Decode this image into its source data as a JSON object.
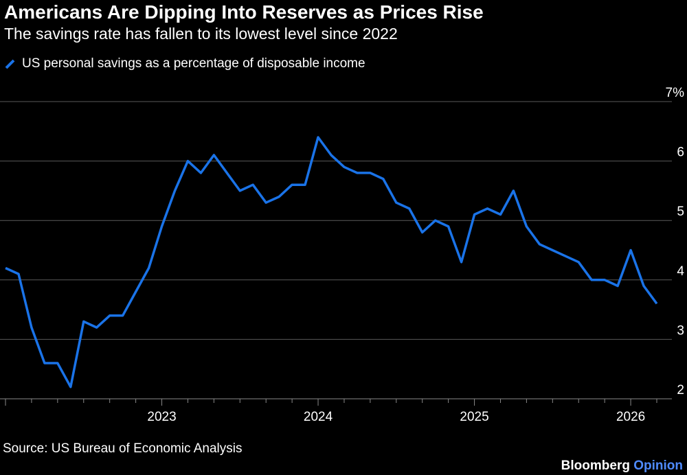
{
  "header": {
    "title": "Americans Are Dipping Into Reserves as Prices Rise",
    "subtitle": "The savings rate has fallen to its lowest level since 2022"
  },
  "footer": {
    "source": "Source: US Bureau of Economic Analysis",
    "brand_main": "Bloomberg",
    "brand_accent": "Opinion"
  },
  "colors": {
    "background": "#000000",
    "line": "#1a73e8",
    "grid": "#5a5a5a",
    "brand_accent": "#4f8bff"
  },
  "chart_data": {
    "type": "line",
    "title": "Americans Are Dipping Into Reserves as Prices Rise",
    "subtitle": "The savings rate has fallen to its lowest level since 2022",
    "xlabel": "",
    "ylabel": "",
    "ylim": [
      2,
      7
    ],
    "y_ticks": [
      2,
      3,
      4,
      5,
      6,
      7
    ],
    "y_tick_labels": [
      "2",
      "3",
      "4",
      "5",
      "6",
      "7%"
    ],
    "y_axis_position": "right",
    "grid": true,
    "legend_position": "top-left",
    "x_ticks": [
      "2023-01",
      "2024-01",
      "2025-01",
      "2026-01"
    ],
    "x_tick_labels": [
      "2023",
      "2024",
      "2025",
      "2026"
    ],
    "series": [
      {
        "name": "US personal savings as a percentage of disposable income",
        "x": [
          "2022-01",
          "2022-02",
          "2022-03",
          "2022-04",
          "2022-05",
          "2022-06",
          "2022-07",
          "2022-08",
          "2022-09",
          "2022-10",
          "2022-11",
          "2022-12",
          "2023-01",
          "2023-02",
          "2023-03",
          "2023-04",
          "2023-05",
          "2023-06",
          "2023-07",
          "2023-08",
          "2023-09",
          "2023-10",
          "2023-11",
          "2023-12",
          "2024-01",
          "2024-02",
          "2024-03",
          "2024-04",
          "2024-05",
          "2024-06",
          "2024-07",
          "2024-08",
          "2024-09",
          "2024-10",
          "2024-11",
          "2024-12",
          "2025-01",
          "2025-02",
          "2025-03",
          "2025-04",
          "2025-05",
          "2025-06",
          "2025-07",
          "2025-08",
          "2025-09",
          "2025-10",
          "2025-11",
          "2025-12",
          "2026-01",
          "2026-02",
          "2026-03"
        ],
        "values": [
          4.2,
          4.1,
          3.2,
          2.6,
          2.6,
          2.2,
          3.3,
          3.2,
          3.4,
          3.4,
          3.8,
          4.2,
          4.9,
          5.5,
          6.0,
          5.8,
          6.1,
          5.8,
          5.5,
          5.6,
          5.3,
          5.4,
          5.6,
          5.6,
          6.4,
          6.1,
          5.9,
          5.8,
          5.8,
          5.7,
          5.3,
          5.2,
          4.8,
          5.0,
          4.9,
          4.3,
          5.1,
          5.2,
          5.1,
          5.5,
          4.9,
          4.6,
          4.5,
          4.4,
          4.3,
          4.0,
          4.0,
          3.9,
          4.5,
          3.9,
          3.6
        ]
      }
    ]
  }
}
